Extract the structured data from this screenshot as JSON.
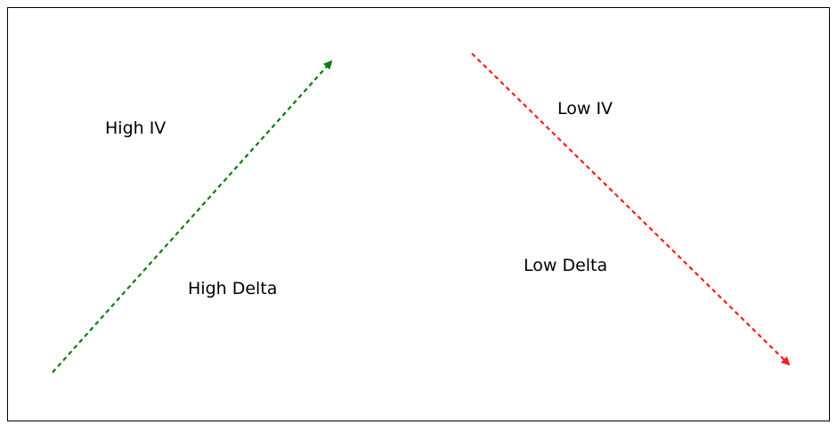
{
  "labels": {
    "high_iv": "High IV",
    "high_delta": "High Delta",
    "low_iv": "Low IV",
    "low_delta": "Low Delta"
  },
  "colors": {
    "up_arrow": "#0f7a0f",
    "down_arrow": "#ff1a1a",
    "border": "#000000",
    "text": "#000000"
  },
  "arrows": [
    {
      "name": "up-arrow",
      "direction": "up-right",
      "style": "dashed"
    },
    {
      "name": "down-arrow",
      "direction": "down-right",
      "style": "dashed"
    }
  ]
}
